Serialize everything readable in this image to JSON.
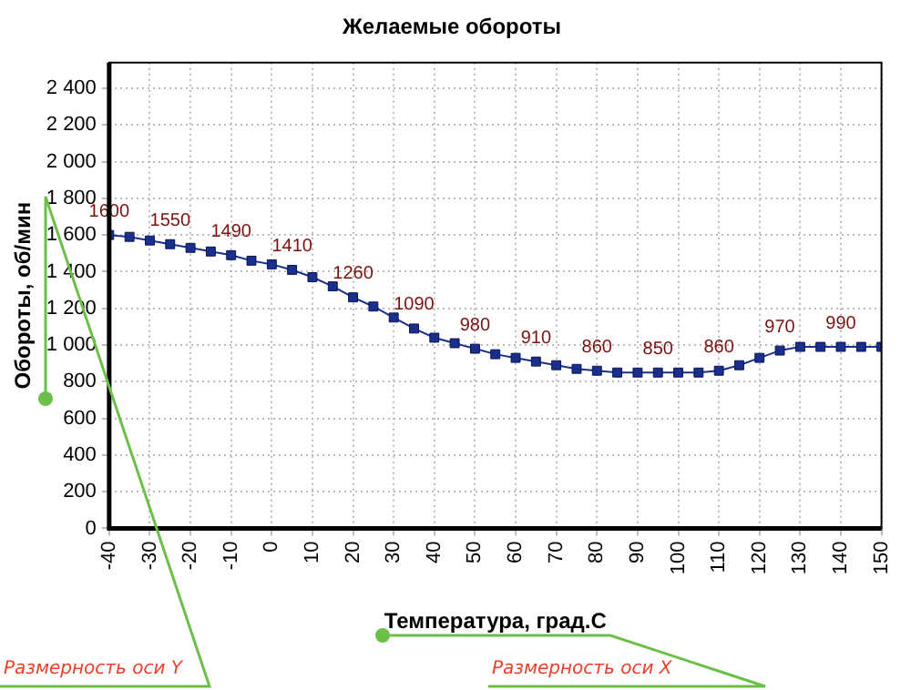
{
  "chart_data": {
    "type": "line",
    "title": "Желаемые обороты",
    "xlabel": "Температура, град.С",
    "ylabel": "Обороты, об/мин",
    "x": [
      -40,
      -35,
      -30,
      -25,
      -20,
      -15,
      -10,
      -5,
      0,
      5,
      10,
      15,
      20,
      25,
      30,
      35,
      40,
      45,
      50,
      55,
      60,
      65,
      70,
      75,
      80,
      85,
      90,
      95,
      100,
      105,
      110,
      115,
      120,
      125,
      130,
      135,
      140,
      145,
      150
    ],
    "series": [
      {
        "color": "#1a2e8c",
        "values": [
          1600,
          1590,
          1570,
          1550,
          1530,
          1510,
          1490,
          1460,
          1440,
          1410,
          1370,
          1320,
          1260,
          1210,
          1150,
          1090,
          1040,
          1010,
          980,
          950,
          930,
          910,
          890,
          870,
          860,
          850,
          850,
          850,
          850,
          850,
          860,
          890,
          930,
          970,
          990,
          990,
          990,
          990,
          990
        ],
        "value_labels": [
          "1600",
          null,
          null,
          "1550",
          null,
          null,
          "1490",
          null,
          null,
          "1410",
          null,
          null,
          "1260",
          null,
          null,
          "1090",
          null,
          null,
          "980",
          null,
          null,
          "910",
          null,
          null,
          "860",
          null,
          null,
          "850",
          null,
          null,
          "860",
          null,
          null,
          "970",
          null,
          null,
          "990",
          null,
          null
        ]
      }
    ],
    "xlim": [
      -40,
      150
    ],
    "xticks": [
      -40,
      -30,
      -20,
      -10,
      0,
      10,
      20,
      30,
      40,
      50,
      60,
      70,
      80,
      90,
      100,
      110,
      120,
      130,
      140,
      150
    ],
    "ylim": [
      0,
      2540
    ],
    "yticks": [
      0,
      200,
      400,
      600,
      800,
      1000,
      1200,
      1400,
      1600,
      1800,
      2000,
      2200,
      2400
    ],
    "grid": true,
    "legend": false,
    "marker": "square",
    "line_style": "solid",
    "annotations": [
      "Размерность оси Y",
      "Размерность оси X"
    ]
  }
}
